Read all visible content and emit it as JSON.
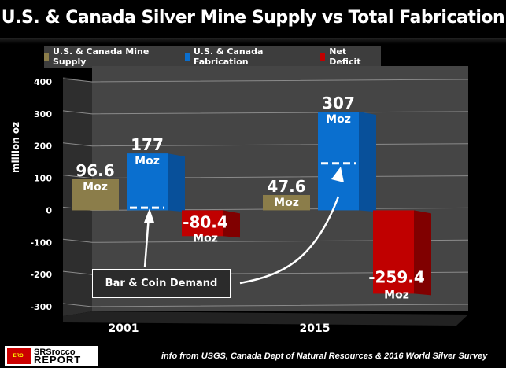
{
  "chart_data": {
    "type": "bar",
    "title": "U.S. & Canada Silver Mine Supply vs Total Fabrication",
    "xlabel": "",
    "ylabel": "million oz",
    "ylim": [
      -300,
      400
    ],
    "yticks": [
      400,
      300,
      200,
      100,
      0,
      -100,
      -200,
      -300
    ],
    "grid": true,
    "legend_position": "top",
    "categories": [
      "2001",
      "2015"
    ],
    "series": [
      {
        "name": "U.S. & Canada Mine Supply",
        "color": "#8b7d4a",
        "values": [
          96.6,
          47.6
        ],
        "labels": [
          "96.6",
          "47.6"
        ]
      },
      {
        "name": "U.S. & Canada Fabrication",
        "color": "#0a6fcf",
        "values": [
          177,
          307
        ],
        "labels": [
          "177",
          "307"
        ]
      },
      {
        "name": "Net Deficit",
        "color": "#c00000",
        "values": [
          -80.4,
          -259.4
        ],
        "labels": [
          "-80.4",
          "-259.4"
        ]
      }
    ],
    "unit_label": "Moz",
    "bar_coin_demand_markers": [
      8,
      146
    ],
    "annotations": [
      {
        "text": "Bar & Coin Demand"
      }
    ],
    "source": "info from USGS, Canada Dept of Natural Resources & 2016 World Silver Survey"
  },
  "logo": {
    "badge": "EROI",
    "line1": "SRSrocco",
    "line2": "REPORT"
  }
}
